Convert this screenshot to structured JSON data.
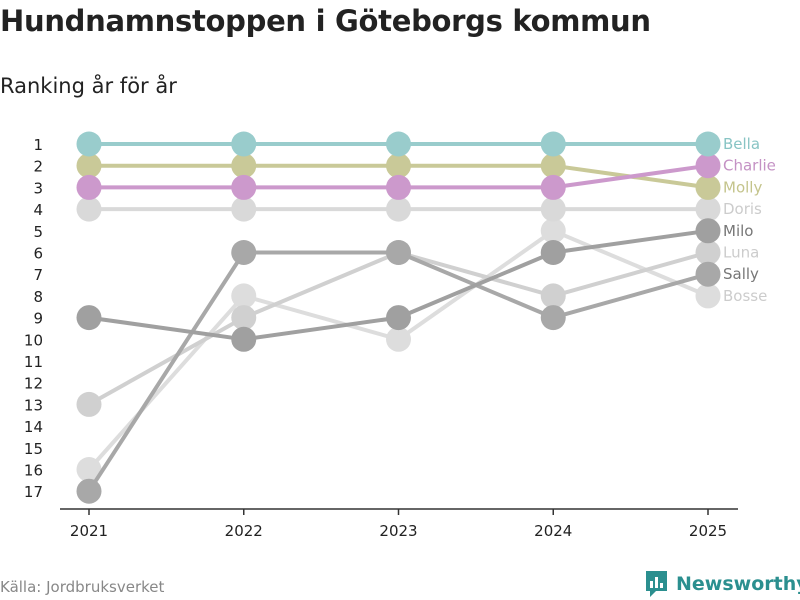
{
  "title": "Hundnamnstoppen i Göteborgs kommun",
  "subtitle": "Ranking år för år",
  "source": "Källa: Jordbruksverket",
  "brand": "Newsworthy",
  "chart_data": {
    "type": "line",
    "chart_kind": "bump",
    "x": [
      "2021",
      "2022",
      "2023",
      "2024",
      "2025"
    ],
    "y_ticks": [
      1,
      2,
      3,
      4,
      5,
      6,
      7,
      8,
      9,
      10,
      11,
      12,
      13,
      14,
      15,
      16,
      17
    ],
    "ylim": [
      1,
      17
    ],
    "y_inverted": true,
    "series": [
      {
        "name": "Bosse",
        "color": "#dddddd",
        "values": [
          16,
          8,
          10,
          5,
          8
        ]
      },
      {
        "name": "Luna",
        "color": "#d0d0d0",
        "values": [
          13,
          9,
          6,
          8,
          6
        ]
      },
      {
        "name": "Doris",
        "color": "#d9d9d9",
        "values": [
          4,
          4,
          4,
          4,
          4
        ]
      },
      {
        "name": "Sally",
        "color": "#a8a8a8",
        "values": [
          17,
          6,
          6,
          9,
          7
        ]
      },
      {
        "name": "Milo",
        "color": "#a0a0a0",
        "values": [
          9,
          10,
          9,
          6,
          5
        ]
      },
      {
        "name": "Molly",
        "color": "#c9c998",
        "values": [
          2,
          2,
          2,
          2,
          3
        ]
      },
      {
        "name": "Charlie",
        "color": "#cc99cc",
        "values": [
          3,
          3,
          3,
          3,
          2
        ]
      },
      {
        "name": "Bella",
        "color": "#99cccc",
        "values": [
          1,
          1,
          1,
          1,
          1
        ]
      }
    ],
    "label_colors": {
      "Bella": "#88c4c4",
      "Charlie": "#c491c4",
      "Molly": "#c4c48c",
      "Doris": "#cccccc",
      "Milo": "#777777",
      "Luna": "#cccccc",
      "Sally": "#777777",
      "Bosse": "#cccccc"
    },
    "xlabel": "",
    "ylabel": ""
  }
}
